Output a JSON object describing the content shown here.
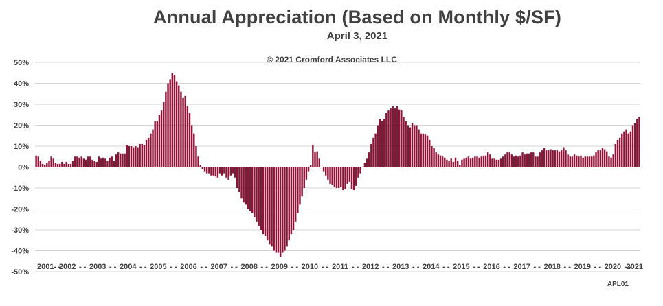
{
  "chart_data": {
    "type": "bar",
    "title": "Annual Appreciation (Based on Monthly $/SF)",
    "subtitle": "April 3, 2021",
    "annotation": "© 2021 Cromford Associates LLC",
    "footnote": "APL01",
    "xlabel": "",
    "ylabel": "",
    "ylim": [
      -50,
      50
    ],
    "y_ticks": [
      "50%",
      "40%",
      "30%",
      "20%",
      "10%",
      "0%",
      "-10%",
      "-20%",
      "-30%",
      "-40%",
      "-50%"
    ],
    "x_tick_labels": [
      "2001",
      "2002",
      "2003",
      "2004",
      "2005",
      "2006",
      "2007",
      "2008",
      "2009",
      "2010",
      "2011",
      "2012",
      "2013",
      "2014",
      "2015",
      "2016",
      "2017",
      "2018",
      "2019",
      "2020",
      "2021"
    ],
    "x_separator": "- -",
    "grid": true,
    "bar_color": "#8B1538",
    "series_start": "2001-01",
    "series_frequency": "monthly",
    "values": [
      5.5,
      5,
      3,
      1.5,
      1,
      2,
      3,
      5,
      4,
      2,
      1.5,
      1.5,
      2.5,
      1.5,
      2.5,
      1.5,
      1.5,
      3,
      5,
      5,
      4.5,
      5,
      4,
      3.5,
      5,
      5,
      3.5,
      3,
      2.5,
      5,
      4,
      4.5,
      4,
      3,
      4.5,
      5,
      3,
      6,
      7,
      6.5,
      6.5,
      6.5,
      10.5,
      10,
      10,
      9.5,
      10,
      9.5,
      11,
      11,
      10.5,
      13,
      14,
      16,
      18,
      22,
      22,
      25,
      27,
      31,
      36,
      40,
      42,
      45,
      44,
      41,
      39,
      36,
      33,
      34,
      29,
      26,
      20,
      16,
      10,
      5,
      1,
      -1,
      -2,
      -3,
      -3,
      -4,
      -4,
      -4.5,
      -5,
      -3,
      -4,
      -3,
      -5,
      -6,
      -4,
      -3,
      -5,
      -10,
      -12,
      -15,
      -17,
      -18,
      -20,
      -21,
      -22,
      -24,
      -26,
      -28,
      -30,
      -32,
      -33,
      -35,
      -37,
      -38,
      -40,
      -41,
      -41,
      -43,
      -41,
      -40,
      -38,
      -35,
      -32,
      -30,
      -26,
      -22,
      -18,
      -14,
      -10,
      -6,
      -2,
      1,
      10.5,
      7,
      7.5,
      4,
      0,
      -2,
      -4,
      -6,
      -8,
      -8.5,
      -9.5,
      -10,
      -10,
      -9.5,
      -11,
      -10.5,
      -8,
      -7,
      -10.5,
      -11,
      -9,
      -5,
      -3,
      0,
      2,
      4,
      7,
      11,
      14,
      16,
      20,
      23,
      22,
      23,
      26,
      27,
      28,
      29,
      28,
      29,
      27.5,
      27,
      24,
      22,
      20,
      19,
      21,
      20,
      20,
      18,
      16,
      16,
      15.5,
      15,
      13,
      10,
      9,
      7,
      6,
      5.5,
      5,
      4.5,
      3.5,
      3,
      4,
      2.5,
      4.5,
      3,
      1,
      3.5,
      4,
      4.5,
      5,
      4,
      4.5,
      5,
      5,
      4.5,
      5,
      5.5,
      5.5,
      7,
      6,
      4,
      4,
      3.5,
      3.5,
      4,
      5,
      6,
      7,
      7,
      6,
      5,
      5.5,
      5,
      5.5,
      7,
      6,
      6.5,
      6.5,
      7,
      7,
      5,
      5,
      7,
      8,
      9,
      8,
      8,
      8.5,
      8,
      8,
      8,
      7.5,
      8,
      9.5,
      8,
      6,
      5,
      5,
      6,
      5.5,
      5,
      5.5,
      4.5,
      5,
      5,
      5,
      5,
      5.5,
      7,
      8,
      8,
      9,
      8.5,
      7.5,
      5,
      4.5,
      6,
      11,
      13,
      14,
      16,
      17,
      18,
      16,
      17,
      20,
      21,
      23,
      24
    ]
  }
}
